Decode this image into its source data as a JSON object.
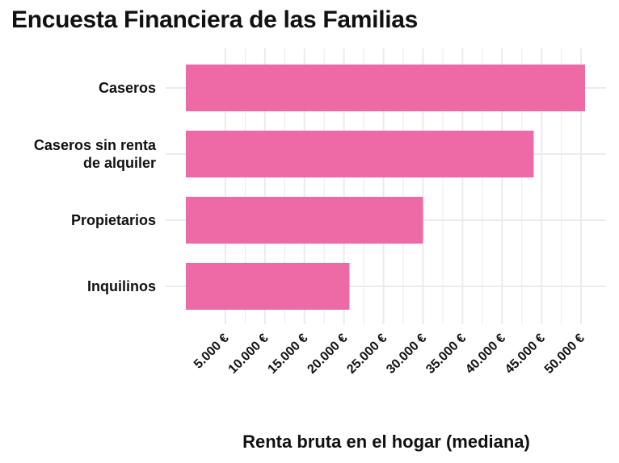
{
  "chart_data": {
    "type": "bar",
    "orientation": "horizontal",
    "title": "Encuesta Financiera de las Familias",
    "xlabel": "Renta bruta en el hogar (mediana)",
    "ylabel": "",
    "categories": [
      {
        "lines": [
          "Caseros"
        ]
      },
      {
        "lines": [
          "Caseros sin renta",
          "de alquiler"
        ]
      },
      {
        "lines": [
          "Propietarios"
        ]
      },
      {
        "lines": [
          "Inquilinos"
        ]
      }
    ],
    "values": [
      50500,
      44000,
      30000,
      20700
    ],
    "xticks": [
      5000,
      10000,
      15000,
      20000,
      25000,
      30000,
      35000,
      40000,
      45000,
      50000
    ],
    "xtick_labels": [
      "5.000 €",
      "10.000 €",
      "15.000 €",
      "20.000 €",
      "25.000 €",
      "30.000 €",
      "35.000 €",
      "40.000 €",
      "45.000 €",
      "50.000 €"
    ],
    "xlim": [
      0,
      52000
    ],
    "grid": true,
    "bar_color": "#ee6aa7",
    "grid_color": "#ebebeb"
  }
}
